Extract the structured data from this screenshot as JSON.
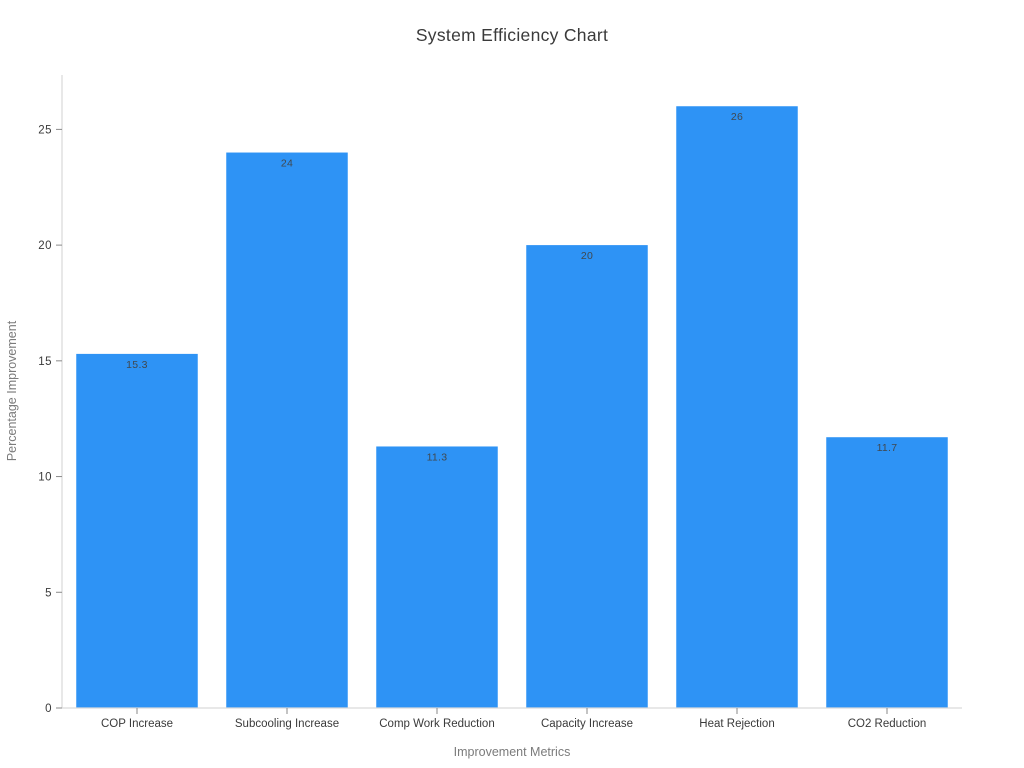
{
  "page": {
    "background_color": "#ffffff"
  },
  "chart_data": {
    "type": "bar",
    "title": "System Efficiency Chart",
    "xlabel": "Improvement Metrics",
    "ylabel": "Percentage Improvement",
    "categories": [
      "COP Increase",
      "Subcooling Increase",
      "Comp Work Reduction",
      "Capacity Increase",
      "Heat Rejection",
      "CO2 Reduction"
    ],
    "values": [
      15.3,
      24,
      11.3,
      20,
      26,
      11.7
    ],
    "value_labels": [
      "15.3",
      "24",
      "11.3",
      "20",
      "26",
      "11.7"
    ],
    "yticks": [
      0,
      5,
      10,
      15,
      20,
      25
    ],
    "ylim": [
      0,
      27.35
    ],
    "grid": false,
    "legend_position": "none",
    "colors": {
      "bar_fill": "#2e93f5",
      "value_label": "#40484f",
      "tick_label": "#3a3a3a",
      "axis_title": "#7b7b7b",
      "chart_title": "#3a3a3a",
      "axis_line": "#d9d9d9",
      "tick_mark": "#8a8a8a"
    }
  }
}
